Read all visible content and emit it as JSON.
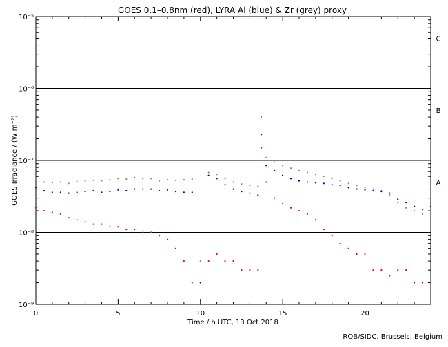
{
  "chart_data": {
    "type": "scatter",
    "title": "GOES 0.1–0.8nm (red), LYRA Al (blue) & Zr (grey) proxy",
    "xlabel": "Time / h UTC, 13 Oct 2018",
    "ylabel": "GOES Irradiance / (W m⁻²)",
    "xlim": [
      0,
      24
    ],
    "ylim": [
      1e-09,
      1e-05
    ],
    "yscale": "log",
    "x_ticks": [
      0,
      5,
      10,
      15,
      20
    ],
    "x_tick_labels": [
      "0",
      "5",
      "10",
      "15",
      "20"
    ],
    "y_ticks": [
      1e-09,
      1e-08,
      1e-07,
      1e-06,
      1e-05
    ],
    "y_tick_labels": [
      "10⁻⁹",
      "10⁻⁸",
      "10⁻⁷",
      "10⁻⁶",
      "10⁻⁵"
    ],
    "reference_lines": [
      1e-08,
      1e-07,
      1e-06
    ],
    "flare_classes": [
      {
        "label": "A",
        "value": 5e-08
      },
      {
        "label": "B",
        "value": 5e-07
      },
      {
        "label": "C",
        "value": 5e-06
      }
    ],
    "series": [
      {
        "name": "GOES 0.1-0.8nm",
        "color": "#ff0000",
        "x": [
          0.0,
          0.5,
          1.0,
          1.5,
          2.0,
          2.5,
          3.0,
          3.5,
          4.0,
          4.5,
          5.0,
          5.5,
          6.0,
          6.5,
          7.0,
          7.5,
          8.0,
          8.5,
          9.0,
          9.5,
          10.0,
          10.5,
          11.0,
          11.5,
          12.0,
          12.5,
          13.0,
          13.5,
          13.7,
          14.0,
          14.5,
          15.0,
          15.5,
          16.0,
          16.5,
          17.0,
          17.5,
          18.0,
          18.5,
          19.0,
          19.5,
          20.0,
          20.5,
          21.0,
          21.5,
          22.0,
          22.5,
          23.0,
          23.5,
          24.0
        ],
        "y": [
          2.2e-08,
          2e-08,
          1.9e-08,
          1.8e-08,
          1.6e-08,
          1.5e-08,
          1.4e-08,
          1.3e-08,
          1.3e-08,
          1.2e-08,
          1.2e-08,
          1.1e-08,
          1.1e-08,
          1e-08,
          1e-08,
          9e-09,
          8e-09,
          6e-09,
          4e-09,
          2e-09,
          1e-09,
          4e-09,
          5e-09,
          4e-09,
          4e-09,
          3e-09,
          3e-09,
          3e-09,
          1.5e-07,
          5e-08,
          3e-08,
          2.5e-08,
          2.2e-08,
          2e-08,
          1.8e-08,
          1.5e-08,
          1.1e-08,
          9e-09,
          7e-09,
          6e-09,
          5e-09,
          5e-09,
          3e-09,
          3e-09,
          2.5e-09,
          3e-09,
          3e-09,
          2e-09,
          2e-09,
          2e-09
        ]
      },
      {
        "name": "LYRA Al proxy",
        "color": "#0000cc",
        "x": [
          0.0,
          0.5,
          1.0,
          1.5,
          2.0,
          2.5,
          3.0,
          3.5,
          4.0,
          4.5,
          5.0,
          5.5,
          6.0,
          6.5,
          7.0,
          7.5,
          8.0,
          8.5,
          9.0,
          9.5,
          10.0,
          10.5,
          11.0,
          11.5,
          12.0,
          12.5,
          13.0,
          13.5,
          13.7,
          14.0,
          14.5,
          15.0,
          15.5,
          16.0,
          16.5,
          17.0,
          17.5,
          18.0,
          18.5,
          19.0,
          19.5,
          20.0,
          20.5,
          21.0,
          21.5,
          22.0,
          22.5,
          23.0,
          23.5,
          24.0
        ],
        "y": [
          4.2e-08,
          3.8e-08,
          3.6e-08,
          3.6e-08,
          3.5e-08,
          3.6e-08,
          3.7e-08,
          3.8e-08,
          3.6e-08,
          3.7e-08,
          3.9e-08,
          3.8e-08,
          4e-08,
          4e-08,
          4e-08,
          3.8e-08,
          3.9e-08,
          3.7e-08,
          3.6e-08,
          3.6e-08,
          2e-09,
          6.2e-08,
          5.6e-08,
          4.6e-08,
          4e-08,
          3.7e-08,
          3.5e-08,
          3.3e-08,
          2.3e-07,
          8.5e-08,
          7.2e-08,
          6.2e-08,
          5.6e-08,
          5.2e-08,
          5e-08,
          4.9e-08,
          4.8e-08,
          4.6e-08,
          4.5e-08,
          4.2e-08,
          4e-08,
          3.9e-08,
          3.8e-08,
          3.7e-08,
          3.5e-08,
          2.9e-08,
          2.6e-08,
          2.3e-08,
          2.1e-08,
          2.3e-08
        ]
      },
      {
        "name": "LYRA Zr proxy",
        "color": "#888888",
        "x": [
          0.0,
          0.5,
          1.0,
          1.5,
          2.0,
          2.5,
          3.0,
          3.5,
          4.0,
          4.5,
          5.0,
          5.5,
          6.0,
          6.5,
          7.0,
          7.5,
          8.0,
          8.5,
          9.0,
          9.5,
          10.0,
          10.5,
          11.0,
          11.5,
          12.0,
          12.5,
          13.0,
          13.5,
          13.7,
          14.0,
          14.5,
          15.0,
          15.5,
          16.0,
          16.5,
          17.0,
          17.5,
          18.0,
          18.5,
          19.0,
          19.5,
          20.0,
          20.5,
          21.0,
          21.5,
          22.0,
          22.5,
          23.0,
          23.5,
          24.0
        ],
        "y": [
          5.5e-08,
          5e-08,
          4.9e-08,
          5e-08,
          4.8e-08,
          5.1e-08,
          5.2e-08,
          5.3e-08,
          5.2e-08,
          5.4e-08,
          5.6e-08,
          5.5e-08,
          5.8e-08,
          5.6e-08,
          5.6e-08,
          5.2e-08,
          5.4e-08,
          5.3e-08,
          5.4e-08,
          5.5e-08,
          4e-09,
          6.8e-08,
          6.4e-08,
          5.6e-08,
          5e-08,
          4.7e-08,
          4.5e-08,
          4.4e-08,
          4e-07,
          1.1e-07,
          9.5e-08,
          8.5e-08,
          7.8e-08,
          7.2e-08,
          6.8e-08,
          6.4e-08,
          6e-08,
          5.6e-08,
          5.2e-08,
          4.8e-08,
          4.5e-08,
          4.2e-08,
          4e-08,
          3.8e-08,
          3.3e-08,
          2.6e-08,
          2.2e-08,
          2e-08,
          1.8e-08,
          2e-08
        ]
      }
    ]
  },
  "credit": "ROB/SIDC, Brussels, Belgium"
}
